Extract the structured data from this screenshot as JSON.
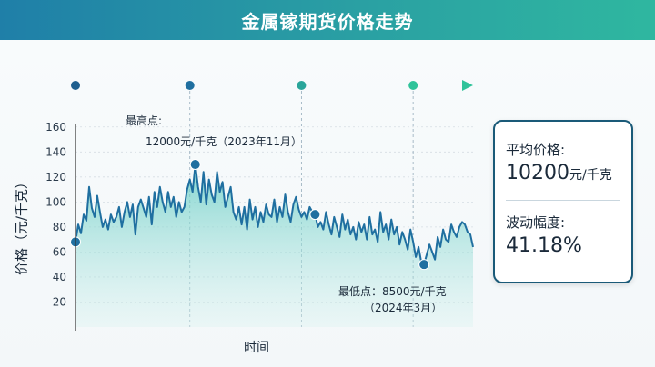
{
  "title": "金属镓期货价格走势",
  "chart_data": {
    "type": "line",
    "ylabel": "价格（元/千克）",
    "xlabel": "时间",
    "yticks": [
      20,
      40,
      60,
      80,
      100,
      120,
      140,
      160
    ],
    "ylim": [
      0,
      170
    ],
    "grid": true,
    "line_color": "#1f6fa0",
    "fill_color": "#7fd8cf",
    "timeline_markers": 5,
    "series": [
      {
        "values": [
          68,
          82,
          75,
          90,
          85,
          112,
          95,
          88,
          105,
          92,
          80,
          86,
          78,
          90,
          84,
          88,
          96,
          80,
          92,
          100,
          88,
          98,
          74,
          96,
          102,
          95,
          88,
          104,
          82,
          108,
          96,
          112,
          100,
          92,
          108,
          96,
          104,
          88,
          100,
          92,
          96,
          110,
          118,
          108,
          130,
          112,
          100,
          124,
          98,
          118,
          106,
          100,
          124,
          108,
          116,
          96,
          104,
          112,
          92,
          86,
          96,
          82,
          96,
          78,
          102,
          86,
          96,
          80,
          92,
          84,
          98,
          90,
          88,
          102,
          84,
          96,
          88,
          106,
          92,
          84,
          98,
          104,
          94,
          88,
          92,
          86,
          96,
          92,
          90,
          80,
          84,
          78,
          92,
          82,
          74,
          88,
          80,
          72,
          90,
          78,
          86,
          74,
          80,
          70,
          84,
          76,
          82,
          70,
          88,
          74,
          78,
          68,
          92,
          76,
          82,
          70,
          86,
          74,
          80,
          66,
          76,
          70,
          62,
          78,
          68,
          56,
          64,
          52,
          50,
          58,
          66,
          60,
          54,
          72,
          64,
          78,
          70,
          68,
          82,
          76,
          72,
          80,
          84,
          82,
          76,
          74,
          64
        ]
      }
    ],
    "highlight_points": [
      {
        "index": 0,
        "value": 68
      },
      {
        "index": 44,
        "value": 130
      },
      {
        "index": 88,
        "value": 90
      },
      {
        "index": 128,
        "value": 50
      }
    ]
  },
  "annotations": {
    "max_label": "最高点:",
    "max_value": "12000元/千克（2023年11月）",
    "min_label_value": "最低点：8500元/千克",
    "min_date": "（2024年3月）"
  },
  "stats": {
    "avg_label": "平均价格:",
    "avg_num": "10200",
    "avg_unit": "元/千克",
    "vol_label": "波动幅度:",
    "vol_value": "41.18%"
  }
}
